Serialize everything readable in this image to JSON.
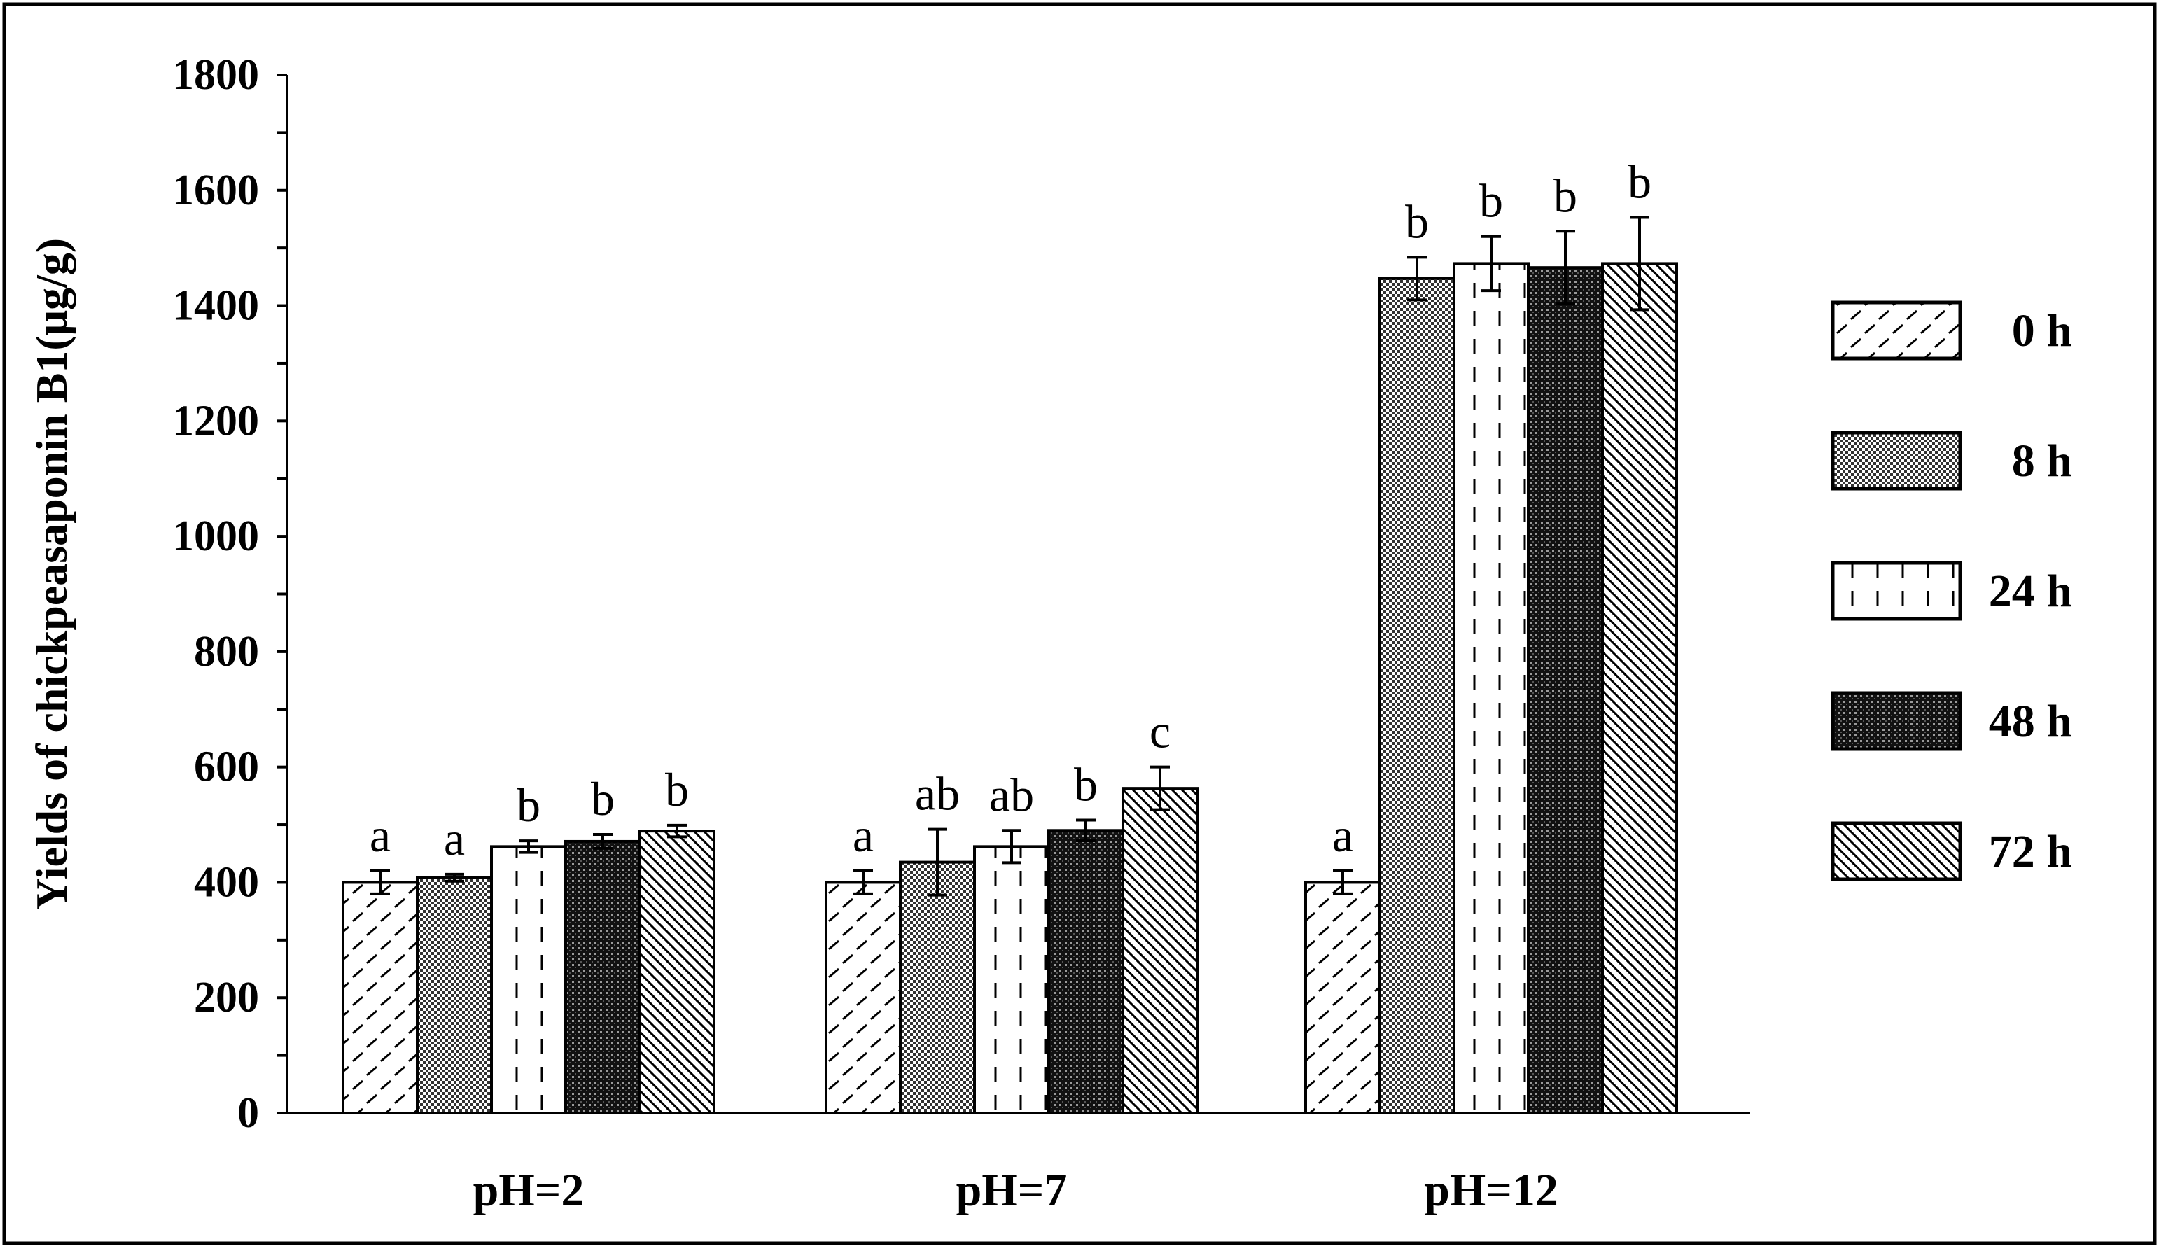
{
  "chart_data": {
    "type": "bar",
    "title": "",
    "xlabel": "",
    "ylabel": "Yields of chickpeasaponin B1(μg/g)",
    "ylim": [
      0,
      1800
    ],
    "yticks": [
      0,
      200,
      400,
      600,
      800,
      1000,
      1200,
      1400,
      1600,
      1800
    ],
    "minor_tick_step": 100,
    "grid": false,
    "legend_position": "right",
    "categories": [
      "pH=2",
      "pH=7",
      "pH=12"
    ],
    "series": [
      {
        "name": "0 h",
        "pattern": "dashes-diag",
        "values": [
          400,
          400,
          400
        ],
        "errors": [
          20,
          20,
          20
        ],
        "labels": [
          "a",
          "a",
          "a"
        ]
      },
      {
        "name": "8 h",
        "pattern": "checker",
        "values": [
          408,
          435,
          1447
        ],
        "errors": [
          6,
          57,
          37
        ],
        "labels": [
          "a",
          "ab",
          "b"
        ]
      },
      {
        "name": "24 h",
        "pattern": "dashed-vertical",
        "values": [
          462,
          462,
          1473
        ],
        "errors": [
          10,
          28,
          47
        ],
        "labels": [
          "b",
          "ab",
          "b"
        ]
      },
      {
        "name": "48 h",
        "pattern": "dense-dots",
        "values": [
          471,
          490,
          1466
        ],
        "errors": [
          12,
          18,
          63
        ],
        "labels": [
          "b",
          "b",
          "b"
        ]
      },
      {
        "name": "72 h",
        "pattern": "diagonal",
        "values": [
          489,
          563,
          1473
        ],
        "errors": [
          10,
          37,
          80
        ],
        "labels": [
          "b",
          "c",
          "b"
        ]
      }
    ]
  }
}
